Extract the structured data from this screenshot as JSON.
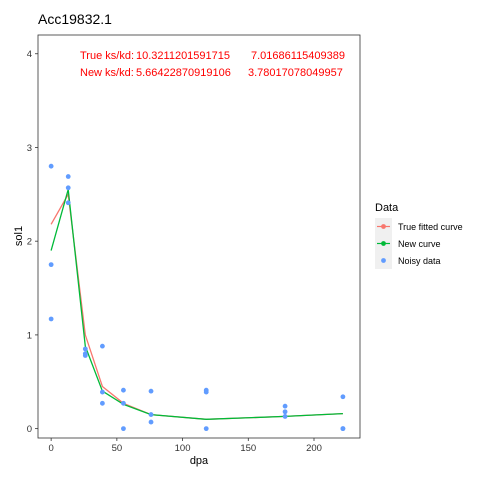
{
  "chart_data": {
    "type": "line",
    "title": "Acc19832.1",
    "xlabel": "dpa",
    "ylabel": "sol1",
    "xlim": [
      -10,
      235
    ],
    "ylim": [
      -0.1,
      4.2
    ],
    "x_ticks": [
      0,
      50,
      100,
      150,
      200
    ],
    "y_ticks": [
      0,
      1,
      2,
      3,
      4
    ],
    "grid": false,
    "annotations": [
      {
        "label": "True ks/kd:",
        "value1": "10.3211201591715",
        "value2": "7.01686115409389"
      },
      {
        "label": "New ks/kd:",
        "value1": "5.66422870919106",
        "value2": "3.78017078049957"
      }
    ],
    "legend": {
      "title": "Data",
      "position": "right",
      "entries": [
        "True fitted curve",
        "New curve",
        "Noisy data"
      ]
    },
    "series": [
      {
        "name": "True fitted curve",
        "kind": "line",
        "color": "#f8766d",
        "x": [
          0,
          13,
          26,
          39,
          55,
          76,
          118,
          178,
          222
        ],
        "y": [
          2.18,
          2.5,
          1.0,
          0.45,
          0.27,
          0.15,
          0.1,
          0.13,
          0.16
        ]
      },
      {
        "name": "New curve",
        "kind": "line",
        "color": "#00ba38",
        "x": [
          0,
          13,
          26,
          39,
          55,
          76,
          118,
          178,
          222
        ],
        "y": [
          1.9,
          2.55,
          0.88,
          0.4,
          0.26,
          0.15,
          0.1,
          0.13,
          0.16
        ]
      },
      {
        "name": "Noisy data",
        "kind": "scatter",
        "color": "#619cff",
        "x": [
          0,
          0,
          0,
          13,
          13,
          13,
          26,
          26,
          26,
          39,
          39,
          39,
          55,
          55,
          55,
          76,
          76,
          76,
          118,
          118,
          118,
          178,
          178,
          178,
          222,
          222,
          222
        ],
        "y": [
          2.8,
          1.75,
          1.17,
          2.69,
          2.57,
          2.41,
          0.85,
          0.8,
          0.78,
          0.88,
          0.39,
          0.27,
          0.41,
          0.27,
          0.0,
          0.4,
          0.15,
          0.07,
          0.41,
          0.39,
          0.0,
          0.24,
          0.18,
          0.13,
          0.34,
          0.0,
          0.0
        ]
      }
    ]
  }
}
